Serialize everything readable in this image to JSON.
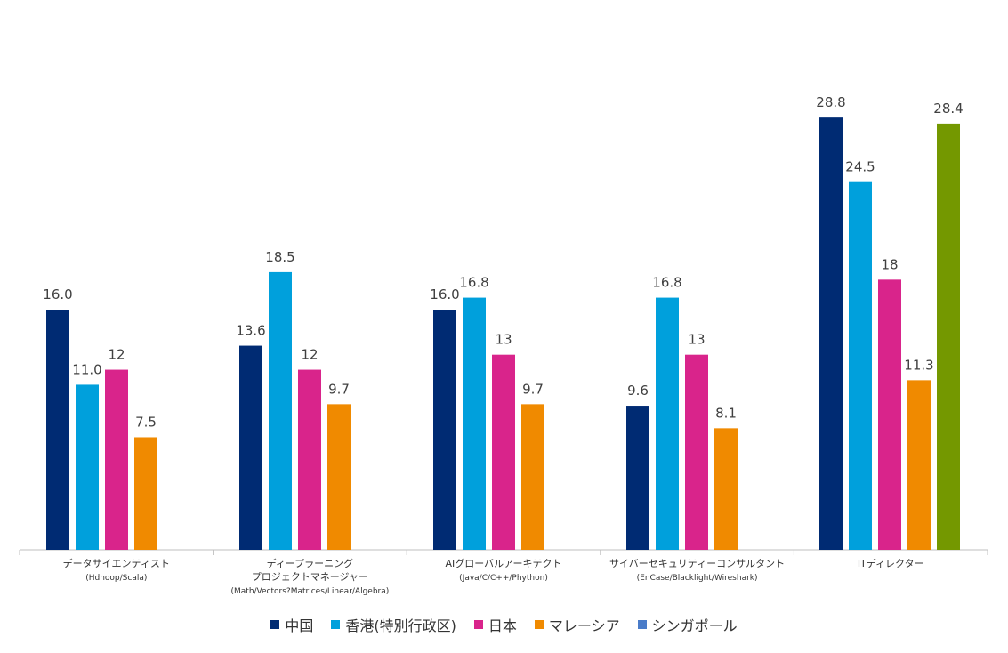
{
  "chart_data": {
    "type": "bar",
    "categories": [
      [
        "データサイエンティスト",
        "(Hdhoop/Scala)"
      ],
      [
        "ディープラーニング",
        "プロジェクトマネージャー",
        "(Math/Vectors?Matrices/Linear/Algebra)"
      ],
      [
        "AIグローバルアーキテクト",
        "(Java/C/C++/Phython)"
      ],
      [
        "サイバーセキュリティーコンサルタント",
        "(EnCase/Blacklight/Wireshark)"
      ],
      [
        "ITディレクター"
      ]
    ],
    "series": [
      {
        "name": "中国",
        "color": "#002b73",
        "values": [
          16.0,
          13.6,
          16.0,
          9.6,
          28.8
        ],
        "labels": [
          "16.0",
          "13.6",
          "16.0",
          "9.6",
          "28.8"
        ]
      },
      {
        "name": "香港(特別行政区)",
        "color": "#00a0dc",
        "values": [
          11.0,
          18.5,
          16.8,
          16.8,
          24.5
        ],
        "labels": [
          "11.0",
          "18.5",
          "16.8",
          "16.8",
          "24.5"
        ]
      },
      {
        "name": "日本",
        "color": "#d9248b",
        "values": [
          12,
          12,
          13,
          13,
          18
        ],
        "labels": [
          "12",
          "12",
          "13",
          "13",
          "18"
        ]
      },
      {
        "name": "マレーシア",
        "color": "#f08a00",
        "values": [
          7.5,
          9.7,
          9.7,
          8.1,
          11.3
        ],
        "labels": [
          "7.5",
          "9.7",
          "9.7",
          "8.1",
          "11.3"
        ]
      },
      {
        "name": "シンガポール",
        "color": "#4a7cc9",
        "bar_color": "#749800",
        "values": [
          null,
          null,
          null,
          null,
          28.4
        ],
        "labels": [
          "",
          "",
          "",
          "",
          "28.4"
        ]
      }
    ],
    "ylim": [
      0,
      32
    ],
    "grid": false,
    "legend_position": "bottom"
  }
}
